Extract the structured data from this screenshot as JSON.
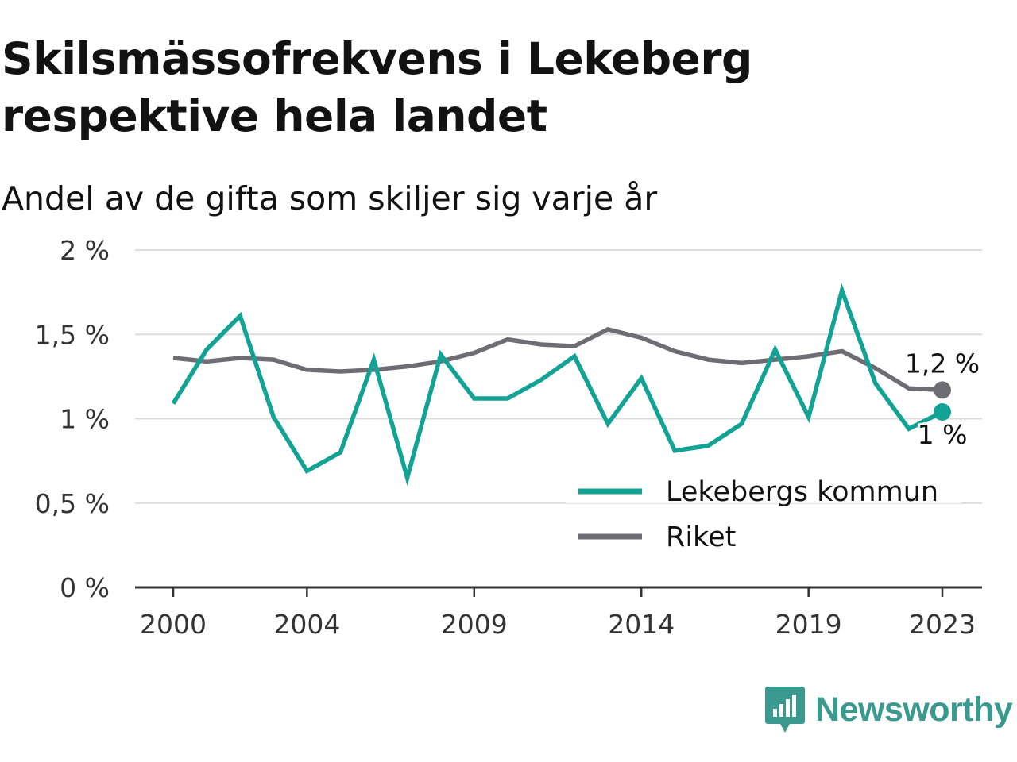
{
  "title": "Skilsmässofrekvens i Lekeberg respektive hela landet",
  "subtitle": "Andel av de gifta som skiljer sig varje år",
  "brand": "Newsworthy",
  "chart_data": {
    "type": "line",
    "x": [
      2000,
      2001,
      2002,
      2003,
      2004,
      2005,
      2006,
      2007,
      2008,
      2009,
      2010,
      2011,
      2012,
      2013,
      2014,
      2015,
      2016,
      2017,
      2018,
      2019,
      2020,
      2021,
      2022,
      2023
    ],
    "x_tick_labels": [
      "2000",
      "2004",
      "2009",
      "2014",
      "2019",
      "2023"
    ],
    "x_tick_values": [
      2000,
      2004,
      2009,
      2014,
      2019,
      2023
    ],
    "y_tick_labels": [
      "0 %",
      "0,5 %",
      "1 %",
      "1,5 %",
      "2 %"
    ],
    "y_tick_values": [
      0,
      0.5,
      1,
      1.5,
      2
    ],
    "ylim": [
      0,
      2
    ],
    "xlim": [
      1999,
      2024.2
    ],
    "grid": true,
    "legend_position": "bottom-right",
    "series": [
      {
        "name": "Lekebergs kommun",
        "color": "#13a395",
        "values": [
          1.09,
          1.41,
          1.61,
          1.01,
          0.69,
          0.8,
          1.35,
          0.65,
          1.38,
          1.12,
          1.12,
          1.23,
          1.37,
          0.97,
          1.24,
          0.81,
          0.84,
          0.97,
          1.41,
          1.01,
          1.76,
          1.21,
          0.94,
          1.04
        ],
        "end_label": "1 %"
      },
      {
        "name": "Riket",
        "color": "#6e6d73",
        "values": [
          1.36,
          1.34,
          1.36,
          1.35,
          1.29,
          1.28,
          1.29,
          1.31,
          1.34,
          1.39,
          1.47,
          1.44,
          1.43,
          1.53,
          1.48,
          1.4,
          1.35,
          1.33,
          1.35,
          1.37,
          1.4,
          1.3,
          1.18,
          1.17
        ],
        "end_label": "1,2 %"
      }
    ]
  },
  "colors": {
    "grid": "#dcdcdc",
    "axis": "#333333",
    "text": "#121212",
    "brand": "#3a9a90"
  }
}
